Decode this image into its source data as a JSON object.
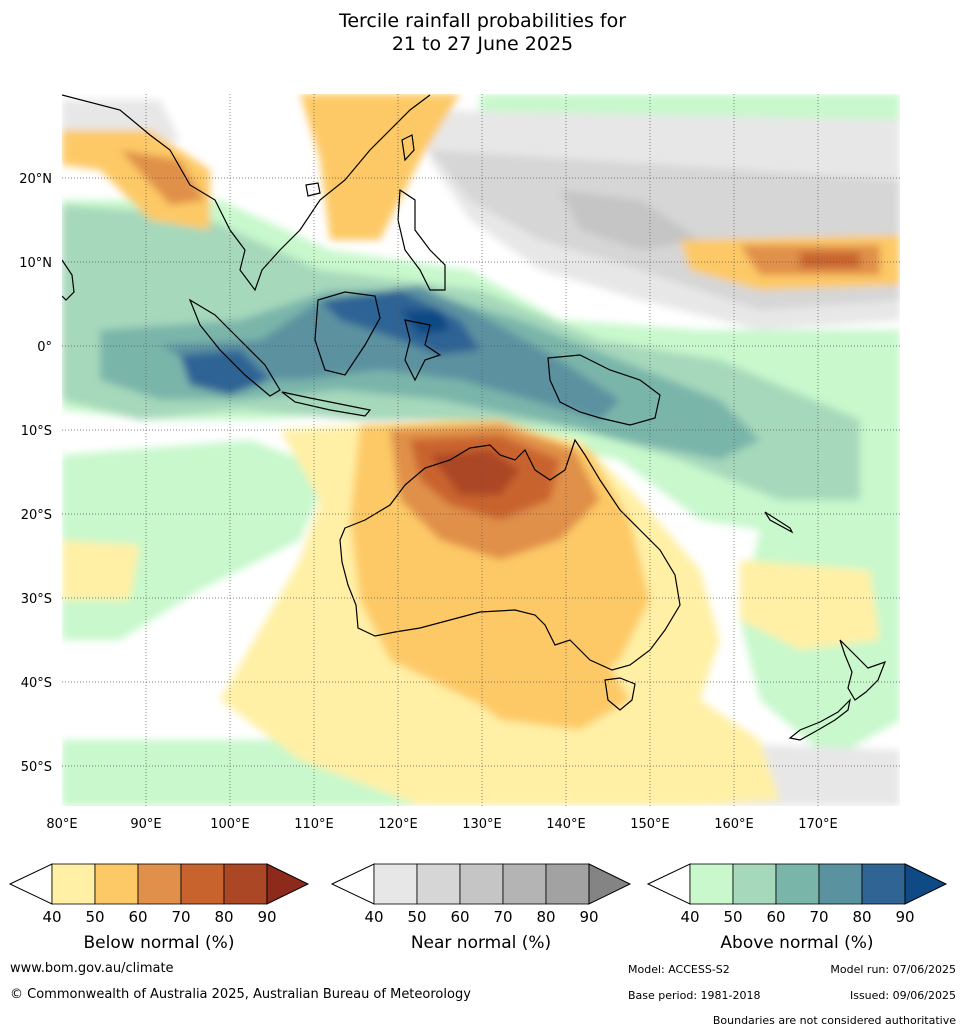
{
  "title": {
    "line1": "Tercile rainfall probabilities for",
    "line2": "21 to 27 June 2025"
  },
  "map": {
    "lat_ticks": [
      "20°N",
      "10°N",
      "0°",
      "10°S",
      "20°S",
      "30°S",
      "40°S",
      "50°S"
    ],
    "lon_ticks": [
      "80°E",
      "90°E",
      "100°E",
      "110°E",
      "120°E",
      "130°E",
      "140°E",
      "150°E",
      "160°E",
      "170°E"
    ]
  },
  "legend": {
    "below": {
      "label": "Below normal (%)",
      "ticks": [
        "40",
        "50",
        "60",
        "70",
        "80",
        "90"
      ],
      "colors": [
        "#fff0a6",
        "#fdc966",
        "#e0904a",
        "#c9632e",
        "#ac4726",
        "#8e2a1c"
      ]
    },
    "near": {
      "label": "Near normal (%)",
      "ticks": [
        "40",
        "50",
        "60",
        "70",
        "80",
        "90"
      ],
      "colors": [
        "#e7e7e7",
        "#d6d6d6",
        "#c5c5c5",
        "#b4b4b4",
        "#a2a2a2",
        "#848484"
      ]
    },
    "above": {
      "label": "Above normal (%)",
      "ticks": [
        "40",
        "50",
        "60",
        "70",
        "80",
        "90"
      ],
      "colors": [
        "#c8f8cc",
        "#a6d8bb",
        "#7ab5aa",
        "#5b92a0",
        "#2f6495",
        "#0f4a85"
      ]
    }
  },
  "footer": {
    "url": "www.bom.gov.au/climate",
    "copyright": "© Commonwealth of Australia 2025, Australian Bureau of Meteorology",
    "model": "Model: ACCESS-S2",
    "model_run": "Model run: 07/06/2025",
    "base_period": "Base period: 1981-2018",
    "issued": "Issued: 09/06/2025",
    "disclaimer": "Boundaries are not considered authoritative"
  }
}
